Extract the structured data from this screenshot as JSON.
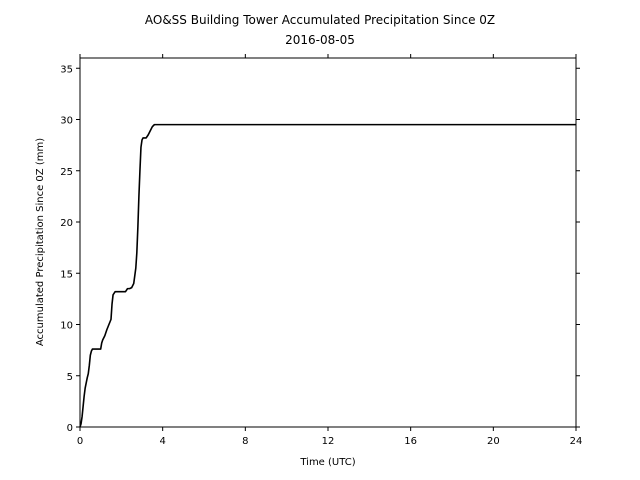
{
  "chart_data": {
    "type": "line",
    "title": "AO&SS Building Tower Accumulated Precipitation Since 0Z",
    "subtitle": "2016-08-05",
    "xlabel": "Time (UTC)",
    "ylabel": "Accumulated Precipitation Since 0Z (mm)",
    "xlim": [
      0,
      24
    ],
    "ylim": [
      0,
      36
    ],
    "xticks": [
      0,
      4,
      8,
      12,
      16,
      20,
      24
    ],
    "yticks": [
      0,
      5,
      10,
      15,
      20,
      25,
      30,
      35
    ],
    "grid": false,
    "line_color": "#000000",
    "series": [
      {
        "x": [
          0.0,
          0.05,
          0.1,
          0.15,
          0.2,
          0.25,
          0.3,
          0.35,
          0.4,
          0.45,
          0.5,
          0.55,
          0.6,
          0.7,
          0.8,
          0.9,
          1.0,
          1.05,
          1.1,
          1.2,
          1.3,
          1.4,
          1.5,
          1.55,
          1.6,
          1.7,
          1.8,
          2.0,
          2.2,
          2.3,
          2.4,
          2.5,
          2.6,
          2.7,
          2.75,
          2.8,
          2.85,
          2.9,
          2.95,
          3.0,
          3.05,
          3.1,
          3.2,
          3.3,
          3.4,
          3.5,
          3.6,
          3.7,
          3.8,
          4.0,
          8.0,
          12.0,
          16.0,
          20.0,
          24.0
        ],
        "y": [
          0.0,
          0.3,
          1.0,
          2.0,
          3.0,
          3.8,
          4.3,
          4.8,
          5.2,
          6.0,
          7.0,
          7.4,
          7.6,
          7.6,
          7.6,
          7.6,
          7.6,
          8.2,
          8.5,
          8.9,
          9.5,
          10.0,
          10.5,
          12.0,
          12.9,
          13.2,
          13.2,
          13.2,
          13.2,
          13.5,
          13.5,
          13.6,
          14.0,
          15.5,
          17.0,
          19.5,
          22.5,
          25.0,
          27.3,
          28.0,
          28.2,
          28.2,
          28.2,
          28.5,
          28.9,
          29.3,
          29.5,
          29.5,
          29.5,
          29.5,
          29.5,
          29.5,
          29.5,
          29.5,
          29.5
        ]
      }
    ]
  }
}
